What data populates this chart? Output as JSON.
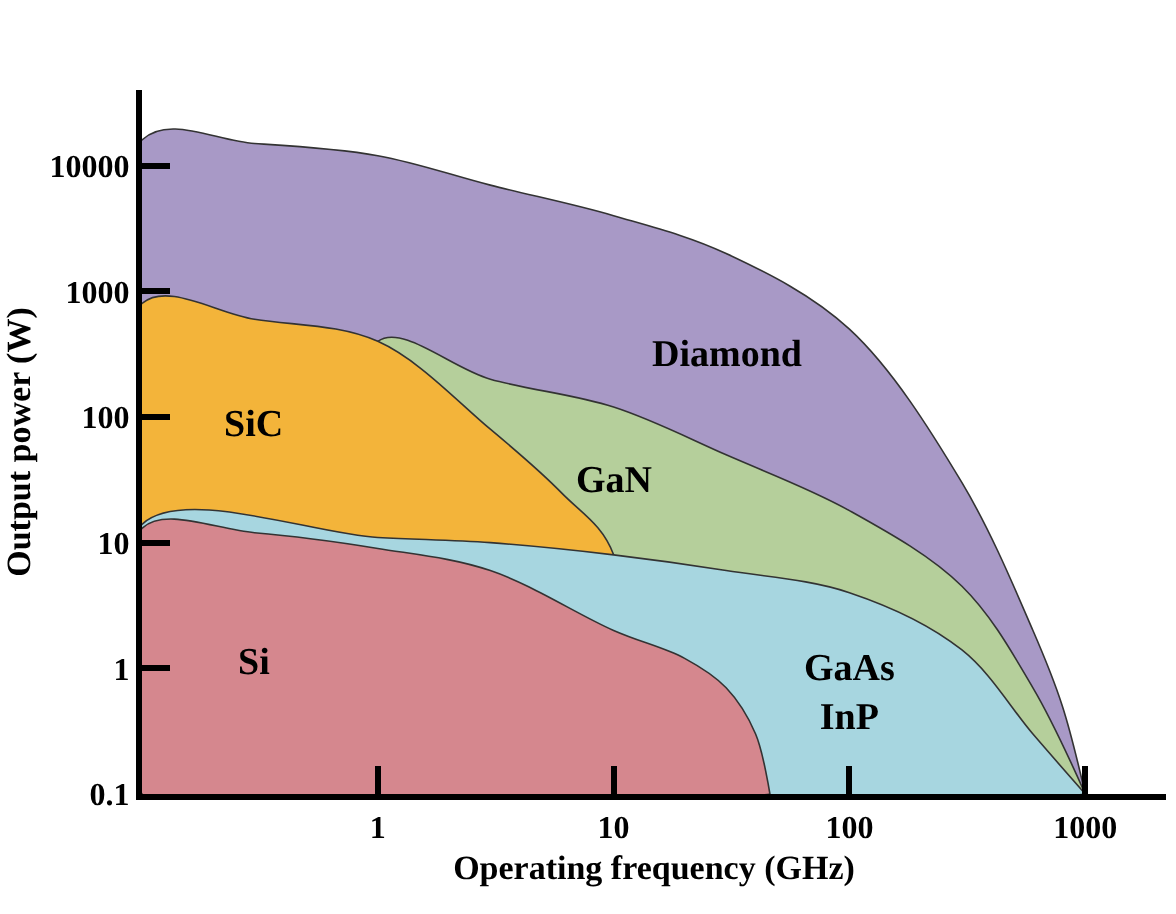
{
  "chart_data": {
    "type": "area",
    "xlabel": "Operating frequency (GHz)",
    "ylabel": "Output power (W)",
    "log": "xy",
    "legend": false,
    "xlim": [
      0.1,
      2200
    ],
    "xticks": [
      1,
      10,
      100,
      1000
    ],
    "ylim": [
      0.1,
      40000
    ],
    "yticks": [
      0.1,
      1,
      10,
      100,
      1000,
      10000
    ],
    "series": [
      {
        "name": "Diamond",
        "color": "#a899c6",
        "x": [
          0.1,
          0.3,
          1,
          3,
          10,
          30,
          100,
          300,
          600,
          800,
          1000
        ],
        "values": [
          16000,
          15000,
          12000,
          7000,
          4000,
          2000,
          500,
          30,
          2,
          0.5,
          0.1
        ]
      },
      {
        "name": "GaN",
        "color": "#b5cf9b",
        "x": [
          1,
          3,
          10,
          30,
          100,
          300,
          600,
          1000
        ],
        "values": [
          400,
          200,
          120,
          50,
          18,
          4.5,
          0.7,
          0.1
        ]
      },
      {
        "name": "SiC",
        "color": "#f3b43a",
        "x": [
          0.1,
          0.3,
          1,
          3,
          6,
          10
        ],
        "values": [
          800,
          600,
          400,
          80,
          25,
          8
        ]
      },
      {
        "name": "GaAs\nInP",
        "color": "#a7d6e0",
        "x": [
          0.1,
          1,
          3,
          10,
          30,
          100,
          300,
          600,
          1000
        ],
        "values": [
          14,
          11,
          10,
          8,
          6,
          4,
          1.4,
          0.3,
          0.1
        ]
      },
      {
        "name": "Si",
        "color": "#d5878e",
        "x": [
          0.1,
          0.3,
          1,
          3,
          10,
          20,
          30,
          40,
          46
        ],
        "values": [
          13,
          12,
          9,
          6,
          2,
          1.2,
          0.7,
          0.3,
          0.1
        ]
      }
    ]
  }
}
